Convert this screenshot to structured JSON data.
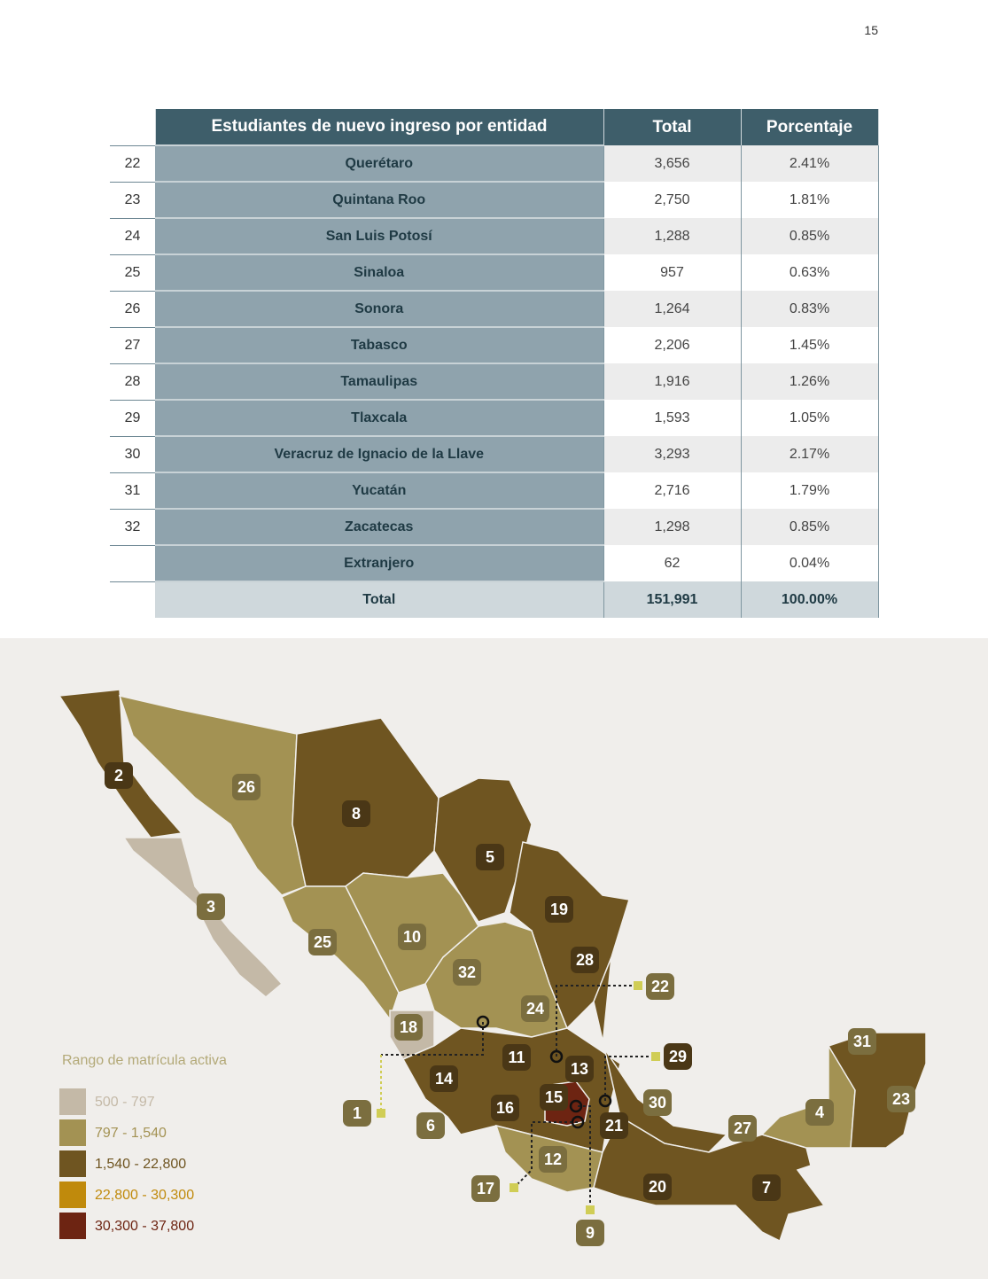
{
  "page_number": "15",
  "table": {
    "columns": [
      "Estudiantes de nuevo ingreso por entidad",
      "Total",
      "Porcentaje"
    ],
    "rows": [
      {
        "num": "22",
        "name": "Querétaro",
        "total": "3,656",
        "pct": "2.41%"
      },
      {
        "num": "23",
        "name": "Quintana Roo",
        "total": "2,750",
        "pct": "1.81%"
      },
      {
        "num": "24",
        "name": "San Luis Potosí",
        "total": "1,288",
        "pct": "0.85%"
      },
      {
        "num": "25",
        "name": "Sinaloa",
        "total": "957",
        "pct": "0.63%"
      },
      {
        "num": "26",
        "name": "Sonora",
        "total": "1,264",
        "pct": "0.83%"
      },
      {
        "num": "27",
        "name": "Tabasco",
        "total": "2,206",
        "pct": "1.45%"
      },
      {
        "num": "28",
        "name": "Tamaulipas",
        "total": "1,916",
        "pct": "1.26%"
      },
      {
        "num": "29",
        "name": "Tlaxcala",
        "total": "1,593",
        "pct": "1.05%"
      },
      {
        "num": "30",
        "name": "Veracruz de Ignacio de la Llave",
        "total": "3,293",
        "pct": "2.17%"
      },
      {
        "num": "31",
        "name": "Yucatán",
        "total": "2,716",
        "pct": "1.79%"
      },
      {
        "num": "32",
        "name": "Zacatecas",
        "total": "1,298",
        "pct": "0.85%"
      },
      {
        "name": "Extranjero",
        "total": "62",
        "pct": "0.04%"
      }
    ],
    "total_row": {
      "name": "Total",
      "total": "151,991",
      "pct": "100.00%"
    }
  },
  "map": {
    "legend_title": "Rango de matrícula activa",
    "legend": [
      {
        "label": "500 - 797",
        "color": "#c4b9a7"
      },
      {
        "label": "797 - 1,540",
        "color": "#a39253"
      },
      {
        "label": "1,540 - 22,800",
        "color": "#6f5521"
      },
      {
        "label": "22,800 - 30,300",
        "color": "#c08a0c"
      },
      {
        "label": "30,300 - 37,800",
        "color": "#6d2412"
      }
    ],
    "labels": [
      "2",
      "26",
      "8",
      "5",
      "3",
      "19",
      "10",
      "25",
      "28",
      "32",
      "22",
      "24",
      "18",
      "31",
      "11",
      "29",
      "13",
      "14",
      "15",
      "23",
      "30",
      "16",
      "1",
      "4",
      "21",
      "6",
      "27",
      "12",
      "17",
      "20",
      "7",
      "9"
    ]
  }
}
